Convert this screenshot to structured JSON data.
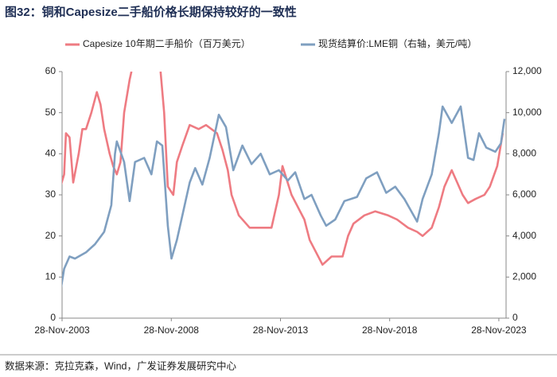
{
  "chart_data": {
    "type": "line",
    "title": "图32：铜和Capesize二手船价格长期保持较好的一致性",
    "source": "数据来源：克拉克森，Wind，广发证券发展研究中心",
    "xlim": [
      "2003-11-28",
      "2024-03-28"
    ],
    "xticks": [
      {
        "value": "2003-11-28",
        "label": "28-Nov-2003"
      },
      {
        "value": "2008-11-28",
        "label": "28-Nov-2008"
      },
      {
        "value": "2013-11-28",
        "label": "28-Nov-2013"
      },
      {
        "value": "2018-11-28",
        "label": "28-Nov-2018"
      },
      {
        "value": "2023-11-28",
        "label": "28-Nov-2023"
      }
    ],
    "ylim": [
      0,
      60
    ],
    "yticks": [
      0,
      10,
      20,
      30,
      40,
      50,
      60
    ],
    "y2lim": [
      0,
      12000
    ],
    "y2ticks": [
      0,
      {
        "value": 2000,
        "label": "2,000"
      },
      {
        "value": 4000,
        "label": "4,000"
      },
      {
        "value": 6000,
        "label": "6,000"
      },
      {
        "value": 8000,
        "label": "8,000"
      },
      {
        "value": 10000,
        "label": "10,000"
      },
      {
        "value": 12000,
        "label": "12,000"
      }
    ],
    "legend": "top",
    "series": [
      {
        "name": "Capesize 10年期二手船价（百万美元）",
        "color": "#ee7b82",
        "axis": "y",
        "x": [
          "2003-11",
          "2004-01",
          "2004-02",
          "2004-04",
          "2004-06",
          "2004-09",
          "2004-11",
          "2005-01",
          "2005-04",
          "2005-07",
          "2005-09",
          "2005-11",
          "2006-02",
          "2006-04",
          "2006-06",
          "2006-08",
          "2006-10",
          "2007-01",
          "2007-02",
          "2007-04",
          "2008-06",
          "2008-08",
          "2008-10",
          "2009-01",
          "2009-03",
          "2009-06",
          "2009-10",
          "2010-03",
          "2010-07",
          "2011-01",
          "2011-04",
          "2011-07",
          "2011-09",
          "2012-01",
          "2012-07",
          "2013-01",
          "2013-07",
          "2013-11",
          "2014-01",
          "2014-06",
          "2015-01",
          "2015-04",
          "2015-11",
          "2016-04",
          "2016-10",
          "2017-01",
          "2017-04",
          "2017-10",
          "2018-04",
          "2018-11",
          "2019-04",
          "2019-10",
          "2020-03",
          "2020-06",
          "2020-11",
          "2021-03",
          "2021-06",
          "2021-10",
          "2022-01",
          "2022-04",
          "2022-07",
          "2022-11",
          "2023-04",
          "2023-07",
          "2023-11",
          "2024-02"
        ],
        "values": [
          32,
          35,
          45,
          44,
          33,
          40,
          46,
          46,
          50,
          55,
          52,
          46,
          40,
          37,
          35,
          38,
          50,
          58,
          60,
          null,
          60,
          50,
          32,
          30,
          38,
          42,
          47,
          46,
          47,
          45,
          41,
          36,
          30,
          25,
          22,
          22,
          22,
          30,
          37,
          30,
          24,
          19,
          13,
          15,
          15,
          20,
          23,
          25,
          26,
          25,
          24,
          22,
          21,
          20,
          22,
          27,
          32,
          36,
          33,
          30,
          28,
          29,
          30,
          32,
          37,
          45
        ]
      },
      {
        "name": "现货结算价:LME铜（右轴，美元/吨）",
        "color": "#7f9fc0",
        "axis": "y2",
        "x": [
          "2003-11",
          "2004-01",
          "2004-04",
          "2004-07",
          "2005-01",
          "2005-06",
          "2005-11",
          "2006-03",
          "2006-05",
          "2006-06",
          "2006-10",
          "2007-01",
          "2007-04",
          "2007-09",
          "2008-01",
          "2008-04",
          "2008-07",
          "2008-10",
          "2008-12",
          "2009-03",
          "2009-06",
          "2009-10",
          "2010-01",
          "2010-05",
          "2010-09",
          "2011-02",
          "2011-06",
          "2011-10",
          "2012-03",
          "2012-08",
          "2013-01",
          "2013-06",
          "2013-11",
          "2014-04",
          "2014-08",
          "2015-01",
          "2015-05",
          "2015-10",
          "2016-01",
          "2016-06",
          "2016-11",
          "2017-06",
          "2017-11",
          "2018-05",
          "2018-10",
          "2019-03",
          "2019-08",
          "2020-03",
          "2020-06",
          "2020-11",
          "2021-03",
          "2021-05",
          "2021-10",
          "2022-03",
          "2022-07",
          "2022-10",
          "2023-01",
          "2023-05",
          "2023-10",
          "2024-01",
          "2024-03"
        ],
        "values": [
          1300,
          2400,
          3000,
          2900,
          3200,
          3600,
          4200,
          5500,
          8000,
          8600,
          7600,
          5700,
          7600,
          7800,
          7000,
          8600,
          8400,
          4500,
          2900,
          3800,
          5000,
          6600,
          7300,
          6500,
          7800,
          9900,
          9300,
          7200,
          8400,
          7500,
          8000,
          7000,
          7200,
          6700,
          7100,
          5800,
          6000,
          5000,
          4500,
          4800,
          5700,
          5900,
          6800,
          7100,
          6100,
          6400,
          5800,
          4700,
          5800,
          7000,
          9000,
          10300,
          9500,
          10300,
          7800,
          7700,
          9000,
          8300,
          8100,
          8500,
          9700
        ]
      }
    ]
  }
}
